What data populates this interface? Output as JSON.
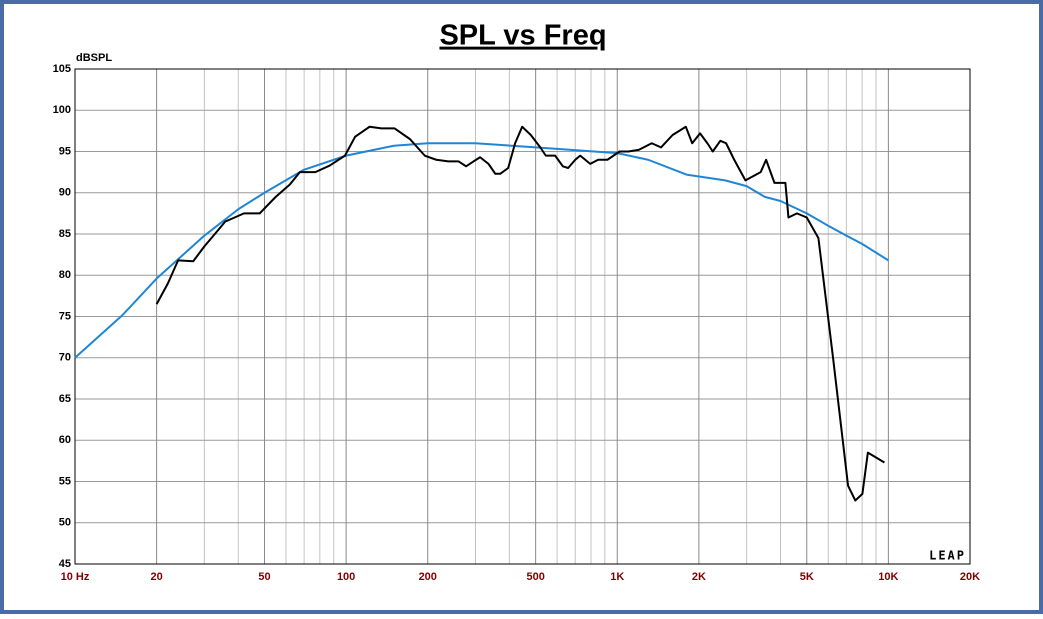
{
  "chart_data": {
    "type": "line",
    "title": "SPL vs Freq",
    "ylabel": "dBSPL",
    "watermark": "LEAP",
    "xscale": "log",
    "grid": true,
    "xlim": [
      10,
      20000
    ],
    "ylim": [
      45,
      105
    ],
    "xticks": [
      {
        "value": 10,
        "label": "10 Hz"
      },
      20,
      50,
      100,
      200,
      500,
      {
        "value": 1000,
        "label": "1K"
      },
      {
        "value": 2000,
        "label": "2K"
      },
      {
        "value": 5000,
        "label": "5K"
      },
      {
        "value": 10000,
        "label": "10K"
      },
      {
        "value": 20000,
        "label": "20K"
      }
    ],
    "xgrid": [
      30,
      40,
      60,
      70,
      80,
      90,
      300,
      400,
      600,
      700,
      800,
      900,
      3000,
      4000,
      6000,
      7000,
      8000,
      9000
    ],
    "yticks": [
      45,
      50,
      55,
      60,
      65,
      70,
      75,
      80,
      85,
      90,
      95,
      100,
      105
    ],
    "series": [
      {
        "color": "#000000",
        "x": [
          20,
          22,
          24,
          27.3,
          30,
          32.8,
          35.8,
          42,
          48,
          55,
          62,
          67.5,
          77,
          87,
          99,
          108,
          122,
          135,
          151,
          172,
          195,
          215,
          238,
          260,
          277,
          295,
          312,
          335,
          355,
          370,
          396,
          420,
          446,
          480,
          520,
          545,
          590,
          630,
          659,
          700,
          730,
          795,
          850,
          920,
          1020,
          1100,
          1200,
          1340,
          1450,
          1600,
          1790,
          1890,
          2020,
          2150,
          2250,
          2400,
          2520,
          2700,
          2970,
          3380,
          3540,
          3800,
          4170,
          4280,
          4600,
          5000,
          5520,
          6250,
          7100,
          7550,
          8020,
          8400,
          9670
        ],
        "values": [
          76.5,
          79,
          81.8,
          81.7,
          83.5,
          85,
          86.5,
          87.5,
          87.5,
          89.5,
          91,
          92.5,
          92.5,
          93.3,
          94.5,
          96.8,
          98,
          97.8,
          97.8,
          96.5,
          94.5,
          94,
          93.8,
          93.8,
          93.2,
          93.8,
          94.3,
          93.5,
          92.3,
          92.3,
          93,
          96,
          98,
          97,
          95.5,
          94.5,
          94.5,
          93.2,
          93,
          94,
          94.5,
          93.5,
          94,
          94,
          95,
          95,
          95.2,
          96,
          95.5,
          97,
          98,
          96,
          97.2,
          96,
          95,
          96.3,
          96,
          94,
          91.5,
          92.5,
          94,
          91.2,
          91.2,
          87,
          87.5,
          87,
          84.5,
          70,
          54.5,
          52.7,
          53.5,
          58.5,
          57.3
        ]
      },
      {
        "color": "#1f86d6",
        "x": [
          10,
          15,
          20,
          30,
          40,
          50,
          70,
          100,
          150,
          200,
          300,
          500,
          1000,
          1300,
          1800,
          2500,
          3000,
          3500,
          4000,
          5000,
          6000,
          7000,
          8000,
          10000
        ],
        "values": [
          70,
          75.2,
          79.6,
          84.8,
          88,
          90,
          92.8,
          94.5,
          95.7,
          96,
          96,
          95.5,
          94.8,
          94,
          92.2,
          91.5,
          90.8,
          89.5,
          89,
          87.5,
          86,
          84.8,
          83.8,
          81.8
        ]
      }
    ]
  }
}
